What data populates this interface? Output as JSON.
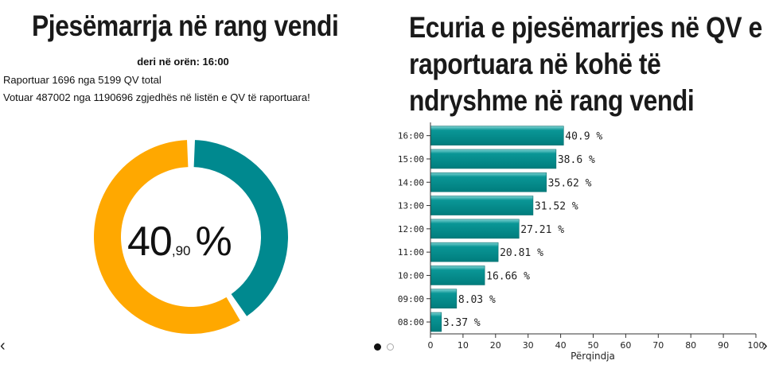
{
  "left_panel": {
    "title": "Pjesëmarrja në rang vendi",
    "as_of": "deri në orën: 16:00",
    "reported_line": "Raportuar 1696 nga 5199 QV total",
    "voted_line": "Votuar 487002 nga 1190696 zgjedhës në listën e QV të raportuara!",
    "turnout_int": "40",
    "turnout_dec": ",90",
    "turnout_unit": "%",
    "turnout_percent": 40.9,
    "colors": {
      "turnout": "#00898f",
      "remaining": "#ffa800"
    }
  },
  "right_panel": {
    "title": "Ecuria e pjesëmarrjes në QV e raportuara në kohë të ndryshme në rang vendi"
  },
  "navigation": {
    "prev": "‹",
    "next": "›",
    "active_slide": 1,
    "slides": 2
  },
  "chart_data": [
    {
      "type": "pie",
      "values": [
        40.9,
        59.1
      ],
      "colors": [
        "#00898f",
        "#ffa800"
      ]
    },
    {
      "type": "bar",
      "orientation": "horizontal",
      "categories": [
        "16:00",
        "15:00",
        "14:00",
        "13:00",
        "12:00",
        "11:00",
        "10:00",
        "09:00",
        "08:00"
      ],
      "values": [
        40.9,
        38.6,
        35.62,
        31.52,
        27.21,
        20.81,
        16.66,
        8.03,
        3.37
      ],
      "value_labels": [
        "40.9 %",
        "38.6 %",
        "35.62 %",
        "31.52 %",
        "27.21 %",
        "20.81 %",
        "16.66 %",
        "8.03 %",
        "3.37 %"
      ],
      "xlabel": "Përqindja",
      "ylabel": "",
      "xlim": [
        0,
        100
      ],
      "xticks": [
        0,
        10,
        20,
        30,
        40,
        50,
        60,
        70,
        80,
        90,
        100
      ],
      "grid": false,
      "color": "#008b8b"
    }
  ]
}
